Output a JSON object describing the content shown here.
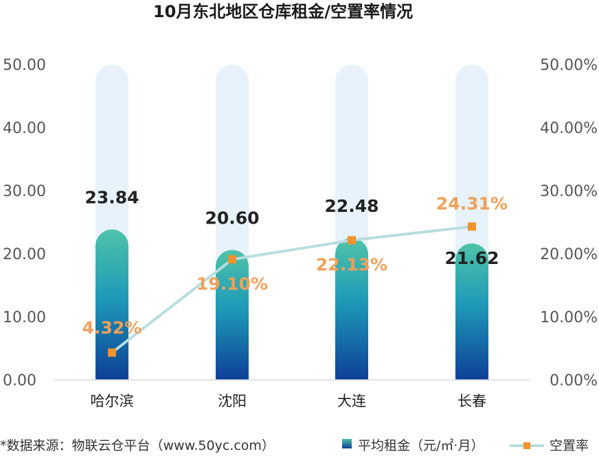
{
  "chart_data": {
    "type": "bar",
    "title": "10月东北地区仓库租金/空置率情况",
    "categories": [
      "哈尔滨",
      "沈阳",
      "大连",
      "长春"
    ],
    "series": [
      {
        "name": "平均租金（元/㎡·月）",
        "kind": "bar",
        "axis": "left",
        "values": [
          23.84,
          20.6,
          22.48,
          21.62
        ],
        "labels": [
          "23.84",
          "20.60",
          "22.48",
          "21.62"
        ]
      },
      {
        "name": "空置率",
        "kind": "line",
        "axis": "right",
        "values": [
          4.32,
          19.1,
          22.13,
          24.31
        ],
        "labels": [
          "4.32%",
          "19.10%",
          "22.13%",
          "24.31%"
        ]
      }
    ],
    "y_left": {
      "range": [
        0,
        50
      ],
      "ticks": [
        "0.00",
        "10.00",
        "20.00",
        "30.00",
        "40.00",
        "50.00"
      ]
    },
    "y_right": {
      "range": [
        0,
        50
      ],
      "ticks": [
        "0.00%",
        "10.00%",
        "20.00%",
        "30.00%",
        "40.00%",
        "50.00%"
      ]
    },
    "legend": {
      "position": "bottom-right"
    },
    "grid": false,
    "colors": {
      "bar_top": "#4fc3a8",
      "bar_bottom": "#0d3f96",
      "bar_background": "#e7f2fa",
      "line": "#b8dde0",
      "marker": "#f0922e",
      "rate_label": "#f0a05a"
    }
  },
  "footer": {
    "source": "*数据来源：物联云仓平台（www.50yc.com）"
  }
}
